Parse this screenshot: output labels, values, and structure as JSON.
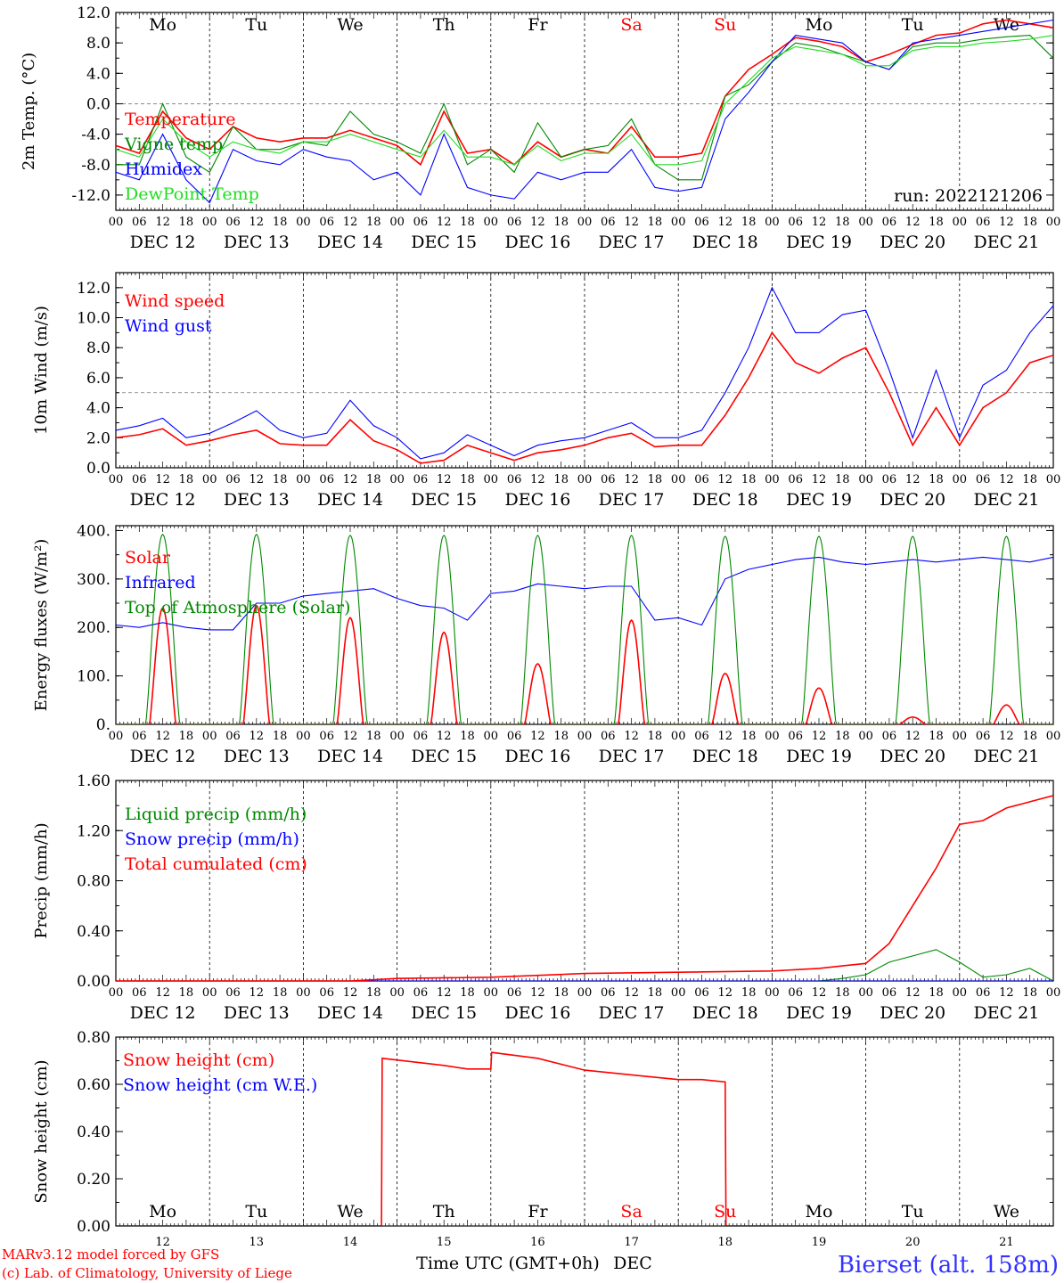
{
  "days": [
    "Mo",
    "Tu",
    "We",
    "Th",
    "Fr",
    "Sa",
    "Su",
    "Mo",
    "Tu",
    "We"
  ],
  "weekend_days": [
    5,
    6
  ],
  "dates": [
    "DEC 12",
    "DEC 13",
    "DEC 14",
    "DEC 15",
    "DEC 16",
    "DEC 17",
    "DEC 18",
    "DEC 19",
    "DEC 20",
    "DEC 21"
  ],
  "date_numbers": [
    "12",
    "13",
    "14",
    "15",
    "16",
    "17",
    "18",
    "19",
    "20",
    "21"
  ],
  "hour_ticks": [
    "00",
    "06",
    "12",
    "18"
  ],
  "hour_end": "00",
  "run_label": "run: 2022121206",
  "xlabel": "Time UTC (GMT+0h)",
  "xlabel_month": "DEC",
  "footer_left": [
    "MARv3.12 model forced by GFS",
    "(c) Lab. of Climatology, University of Liege"
  ],
  "footer_right": "Bierset (alt. 158m)",
  "colors": {
    "red": "#ff0000",
    "green": "#008800",
    "blue": "#0000ff",
    "lightgreen": "#22dd22",
    "weekend": "#ff0000",
    "footer_right": "#3333ff"
  },
  "chart_data": [
    {
      "type": "line",
      "ylabel": "2m Temp. (°C)",
      "ylim": [
        -14,
        12
      ],
      "yticks": [
        "-12.0",
        "-8.0",
        "-4.0",
        "0.0",
        "4.0",
        "8.0",
        "12.0"
      ],
      "ytick_values": [
        -12,
        -8,
        -4,
        0,
        4,
        8,
        12
      ],
      "ref_line": 0,
      "xlim_hours": [
        0,
        240
      ],
      "series": [
        {
          "name": "Temperature",
          "color": "red",
          "x": [
            0,
            6,
            12,
            18,
            24,
            30,
            36,
            42,
            48,
            54,
            60,
            66,
            72,
            78,
            84,
            90,
            96,
            102,
            108,
            114,
            120,
            126,
            132,
            138,
            144,
            150,
            156,
            162,
            168,
            174,
            180,
            186,
            192,
            198,
            204,
            210,
            216,
            222,
            228,
            234,
            240
          ],
          "y": [
            -5.5,
            -6.5,
            -1,
            -4.5,
            -6,
            -3,
            -4.5,
            -5,
            -4.5,
            -4.5,
            -3.5,
            -4.5,
            -5.5,
            -8,
            -1,
            -6.5,
            -6,
            -8,
            -5,
            -7,
            -6,
            -6.5,
            -3,
            -7,
            -7,
            -6.5,
            1,
            4.5,
            6.5,
            8.7,
            8.2,
            7.5,
            5.5,
            6.5,
            7.8,
            9,
            9.3,
            10.5,
            11,
            10.5,
            10
          ]
        },
        {
          "name": "Vigne temp",
          "color": "green",
          "x": [
            0,
            6,
            12,
            18,
            24,
            30,
            36,
            42,
            48,
            54,
            60,
            66,
            72,
            78,
            84,
            90,
            96,
            102,
            108,
            114,
            120,
            126,
            132,
            138,
            144,
            150,
            156,
            162,
            168,
            174,
            180,
            186,
            192,
            198,
            204,
            210,
            216,
            222,
            228,
            234,
            240
          ],
          "y": [
            -8,
            -8,
            0,
            -7,
            -9,
            -3,
            -6,
            -6,
            -5,
            -5.5,
            -1,
            -4,
            -5,
            -6.5,
            0,
            -8,
            -6,
            -9,
            -2.5,
            -7,
            -6,
            -5.5,
            -2,
            -8,
            -10,
            -10,
            1,
            2.5,
            5.5,
            8,
            7.5,
            6.5,
            5.5,
            4.5,
            7.5,
            8,
            8,
            8.5,
            8.8,
            9,
            6
          ]
        },
        {
          "name": "Humidex",
          "color": "blue",
          "x": [
            0,
            6,
            12,
            18,
            24,
            30,
            36,
            42,
            48,
            54,
            60,
            66,
            72,
            78,
            84,
            90,
            96,
            102,
            108,
            114,
            120,
            126,
            132,
            138,
            144,
            150,
            156,
            162,
            168,
            174,
            180,
            186,
            192,
            198,
            204,
            210,
            216,
            222,
            228,
            234,
            240
          ],
          "y": [
            -9,
            -10,
            -4,
            -10,
            -13,
            -6,
            -7.5,
            -8,
            -6,
            -7,
            -7.5,
            -10,
            -9,
            -12,
            -4,
            -11,
            -12,
            -12.5,
            -9,
            -10,
            -9,
            -9,
            -6,
            -11,
            -11.5,
            -11,
            -2,
            1.5,
            5.5,
            9,
            8.5,
            8,
            5.5,
            4.5,
            8,
            8.5,
            9,
            9.5,
            10,
            10.5,
            11
          ]
        },
        {
          "name": "DewPoint Temp",
          "color": "lightgreen",
          "x": [
            0,
            6,
            12,
            18,
            24,
            30,
            36,
            42,
            48,
            54,
            60,
            66,
            72,
            78,
            84,
            90,
            96,
            102,
            108,
            114,
            120,
            126,
            132,
            138,
            144,
            150,
            156,
            162,
            168,
            174,
            180,
            186,
            192,
            198,
            204,
            210,
            216,
            222,
            228,
            234,
            240
          ],
          "y": [
            -6,
            -7,
            -2,
            -5,
            -7,
            -5,
            -6,
            -6.5,
            -5,
            -5,
            -4,
            -5,
            -6,
            -7,
            -3.5,
            -7,
            -7,
            -8,
            -5.5,
            -7.5,
            -6.5,
            -6.5,
            -4,
            -8,
            -8,
            -7.5,
            0,
            3,
            6,
            7.5,
            7,
            6.5,
            5,
            5,
            7,
            7.5,
            7.5,
            8,
            8.2,
            8.5,
            9
          ]
        }
      ]
    },
    {
      "type": "line",
      "ylabel": "10m Wind (m/s)",
      "ylim": [
        0,
        13
      ],
      "yticks": [
        "0.0",
        "2.0",
        "4.0",
        "6.0",
        "8.0",
        "10.0",
        "12.0"
      ],
      "ytick_values": [
        0,
        2,
        4,
        6,
        8,
        10,
        12
      ],
      "ref_line": 5,
      "xlim_hours": [
        0,
        240
      ],
      "series": [
        {
          "name": "Wind speed",
          "color": "red",
          "x": [
            0,
            6,
            12,
            18,
            24,
            30,
            36,
            42,
            48,
            54,
            60,
            66,
            72,
            78,
            84,
            90,
            96,
            102,
            108,
            114,
            120,
            126,
            132,
            138,
            144,
            150,
            156,
            162,
            168,
            174,
            180,
            186,
            192,
            198,
            204,
            210,
            216,
            222,
            228,
            234,
            240
          ],
          "y": [
            2,
            2.2,
            2.6,
            1.5,
            1.8,
            2.2,
            2.5,
            1.6,
            1.5,
            1.5,
            3.2,
            1.8,
            1.2,
            0.3,
            0.5,
            1.5,
            1,
            0.5,
            1,
            1.2,
            1.5,
            2,
            2.3,
            1.4,
            1.5,
            1.5,
            3.5,
            6,
            9,
            7,
            6.3,
            7.3,
            8,
            5,
            1.5,
            4,
            1.5,
            4,
            5,
            7,
            7.5
          ]
        },
        {
          "name": "Wind gust",
          "color": "blue",
          "x": [
            0,
            6,
            12,
            18,
            24,
            30,
            36,
            42,
            48,
            54,
            60,
            66,
            72,
            78,
            84,
            90,
            96,
            102,
            108,
            114,
            120,
            126,
            132,
            138,
            144,
            150,
            156,
            162,
            168,
            174,
            180,
            186,
            192,
            198,
            204,
            210,
            216,
            222,
            228,
            234,
            240
          ],
          "y": [
            2.5,
            2.8,
            3.3,
            2,
            2.3,
            3,
            3.8,
            2.5,
            2,
            2.3,
            4.5,
            2.8,
            2,
            0.6,
            1,
            2.2,
            1.5,
            0.8,
            1.5,
            1.8,
            2,
            2.5,
            3,
            2,
            2,
            2.5,
            5,
            8,
            12,
            9,
            9,
            10.2,
            10.5,
            6.5,
            2,
            6.5,
            2,
            5.5,
            6.5,
            9,
            10.8
          ]
        }
      ]
    },
    {
      "type": "line",
      "ylabel": "Energy fluxes (W/m²)",
      "ylim": [
        0,
        410
      ],
      "yticks": [
        "0.",
        "100.",
        "200.",
        "300.",
        "400."
      ],
      "ytick_values": [
        0,
        100,
        200,
        300,
        400
      ],
      "xlim_hours": [
        0,
        240
      ],
      "series": [
        {
          "name": "Solar",
          "color": "red",
          "day_peaks": [
            240,
            245,
            220,
            190,
            125,
            215,
            105,
            75,
            15,
            40
          ]
        },
        {
          "name": "Infrared",
          "color": "blue",
          "x": [
            0,
            6,
            12,
            18,
            24,
            30,
            36,
            42,
            48,
            54,
            60,
            66,
            72,
            78,
            84,
            90,
            96,
            102,
            108,
            114,
            120,
            126,
            132,
            138,
            144,
            150,
            156,
            162,
            168,
            174,
            180,
            186,
            192,
            198,
            204,
            210,
            216,
            222,
            228,
            234,
            240
          ],
          "y": [
            205,
            200,
            210,
            200,
            195,
            195,
            250,
            250,
            265,
            270,
            275,
            280,
            260,
            245,
            240,
            215,
            270,
            275,
            290,
            285,
            280,
            285,
            285,
            215,
            220,
            205,
            300,
            320,
            330,
            340,
            345,
            335,
            330,
            335,
            340,
            335,
            340,
            345,
            340,
            335,
            345
          ]
        },
        {
          "name": "Top of Atmosphere (Solar)",
          "color": "green",
          "day_peaks": [
            392,
            392,
            390,
            390,
            390,
            390,
            388,
            388,
            388,
            388
          ]
        }
      ]
    },
    {
      "type": "line",
      "ylabel": "Precip (mm/h)",
      "ylim": [
        0,
        1.6
      ],
      "yticks": [
        "0.00",
        "0.40",
        "0.80",
        "1.20",
        "1.60"
      ],
      "ytick_values": [
        0,
        0.4,
        0.8,
        1.2,
        1.6
      ],
      "xlim_hours": [
        0,
        240
      ],
      "series": [
        {
          "name": "Liquid precip (mm/h)",
          "color": "green",
          "x": [
            0,
            168,
            180,
            186,
            192,
            198,
            204,
            210,
            216,
            222,
            228,
            234,
            240
          ],
          "y": [
            0,
            0,
            0,
            0.02,
            0.05,
            0.15,
            0.2,
            0.25,
            0.15,
            0.03,
            0.05,
            0.1,
            0
          ]
        },
        {
          "name": "Snow precip (mm/h)",
          "color": "blue",
          "x": [
            0,
            240
          ],
          "y": [
            0,
            0
          ]
        },
        {
          "name": "Total cumulated (cm)",
          "color": "red",
          "x": [
            0,
            60,
            72,
            96,
            120,
            144,
            168,
            180,
            186,
            192,
            198,
            204,
            210,
            216,
            222,
            228,
            234,
            240
          ],
          "y": [
            0,
            0,
            0.02,
            0.03,
            0.06,
            0.07,
            0.08,
            0.1,
            0.12,
            0.14,
            0.3,
            0.6,
            0.9,
            1.25,
            1.28,
            1.38,
            1.43,
            1.48
          ]
        }
      ]
    },
    {
      "type": "line",
      "ylabel": "Snow height (cm)",
      "ylim": [
        0,
        0.8
      ],
      "yticks": [
        "0.00",
        "0.20",
        "0.40",
        "0.60",
        "0.80"
      ],
      "ytick_values": [
        0,
        0.2,
        0.4,
        0.6,
        0.8
      ],
      "xlim_hours": [
        0,
        240
      ],
      "series": [
        {
          "name": "Snow height (cm)",
          "color": "red",
          "x": [
            0,
            68,
            68.2,
            84,
            90,
            96,
            96.2,
            108,
            120,
            132,
            144,
            150,
            156,
            156.2,
            240
          ],
          "y": [
            0,
            0,
            0.71,
            0.68,
            0.665,
            0.665,
            0.735,
            0.71,
            0.66,
            0.64,
            0.62,
            0.62,
            0.61,
            0,
            0
          ]
        },
        {
          "name": "Snow height (cm W.E.)",
          "color": "blue",
          "x": [
            0,
            240
          ],
          "y": [
            0,
            0
          ]
        }
      ]
    }
  ]
}
